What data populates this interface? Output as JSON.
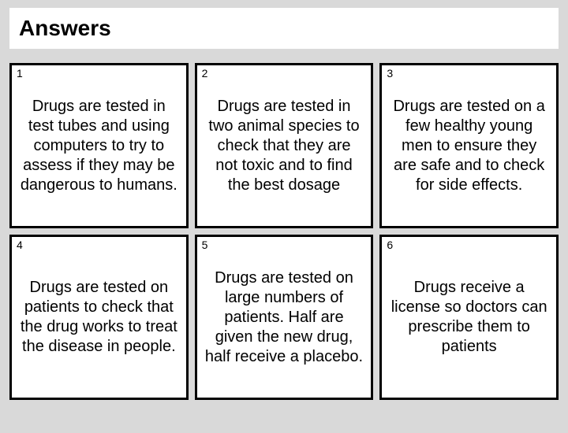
{
  "header": {
    "title": "Answers"
  },
  "grid": {
    "columns": 3,
    "rows": 2,
    "cell_background": "#ffffff",
    "cell_border_color": "#000000",
    "cell_border_width": 3,
    "page_background": "#d9d9d9",
    "number_fontsize": 14,
    "content_fontsize": 20,
    "title_fontsize": 28,
    "cells": [
      {
        "number": "1",
        "text": "Drugs are tested in test tubes and using computers to try to assess if they may be dangerous to humans."
      },
      {
        "number": "2",
        "text": "Drugs are tested in two animal species to check that they are not toxic and to find the best dosage"
      },
      {
        "number": "3",
        "text": "Drugs are tested on a few healthy young men to ensure they are safe and to check for side effects."
      },
      {
        "number": "4",
        "text": "Drugs are tested on patients to check that the drug works to treat the disease in people."
      },
      {
        "number": "5",
        "text": "Drugs are tested on large numbers of patients. Half are given the new drug, half receive a placebo."
      },
      {
        "number": "6",
        "text": "Drugs receive a license so doctors can prescribe them to patients"
      }
    ]
  }
}
